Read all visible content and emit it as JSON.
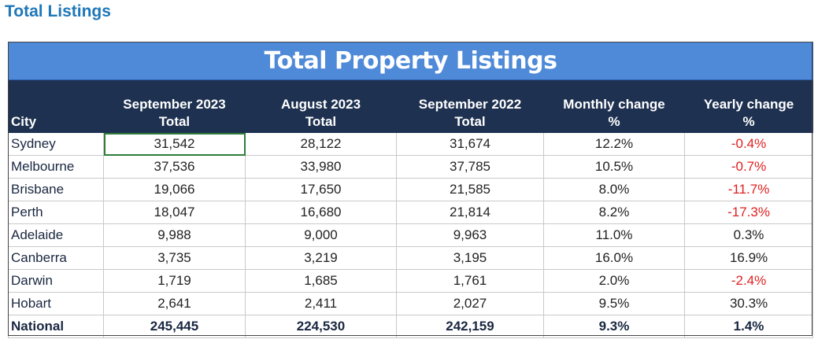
{
  "page_heading": "Total Listings",
  "table": {
    "title": "Total Property Listings",
    "columns": [
      {
        "line1": "",
        "line2": "City"
      },
      {
        "line1": "September 2023",
        "line2": "Total"
      },
      {
        "line1": "August 2023",
        "line2": "Total"
      },
      {
        "line1": "September 2022",
        "line2": "Total"
      },
      {
        "line1": "Monthly change",
        "line2": "%"
      },
      {
        "line1": "Yearly change",
        "line2": "%"
      }
    ],
    "rows": [
      {
        "city": "Sydney",
        "sep2023": "31,542",
        "aug2023": "28,122",
        "sep2022": "31,674",
        "monthly": "12.2%",
        "yearly": "-0.4%"
      },
      {
        "city": "Melbourne",
        "sep2023": "37,536",
        "aug2023": "33,980",
        "sep2022": "37,785",
        "monthly": "10.5%",
        "yearly": "-0.7%"
      },
      {
        "city": "Brisbane",
        "sep2023": "19,066",
        "aug2023": "17,650",
        "sep2022": "21,585",
        "monthly": "8.0%",
        "yearly": "-11.7%"
      },
      {
        "city": "Perth",
        "sep2023": "18,047",
        "aug2023": "16,680",
        "sep2022": "21,814",
        "monthly": "8.2%",
        "yearly": "-17.3%"
      },
      {
        "city": "Adelaide",
        "sep2023": "9,988",
        "aug2023": "9,000",
        "sep2022": "9,963",
        "monthly": "11.0%",
        "yearly": "0.3%"
      },
      {
        "city": "Canberra",
        "sep2023": "3,735",
        "aug2023": "3,219",
        "sep2022": "3,195",
        "monthly": "16.0%",
        "yearly": "16.9%"
      },
      {
        "city": "Darwin",
        "sep2023": "1,719",
        "aug2023": "1,685",
        "sep2022": "1,761",
        "monthly": "2.0%",
        "yearly": "-2.4%"
      },
      {
        "city": "Hobart",
        "sep2023": "2,641",
        "aug2023": "2,411",
        "sep2022": "2,027",
        "monthly": "9.5%",
        "yearly": "30.3%"
      },
      {
        "city": "National",
        "sep2023": "245,445",
        "aug2023": "224,530",
        "sep2022": "242,159",
        "monthly": "9.3%",
        "yearly": "1.4%"
      }
    ]
  },
  "colors": {
    "heading": "#1f77b8",
    "title_bg": "#4f8ad8",
    "header_bg": "#1e3150",
    "negative": "#e02020",
    "selection_border": "#2e7d3a"
  }
}
